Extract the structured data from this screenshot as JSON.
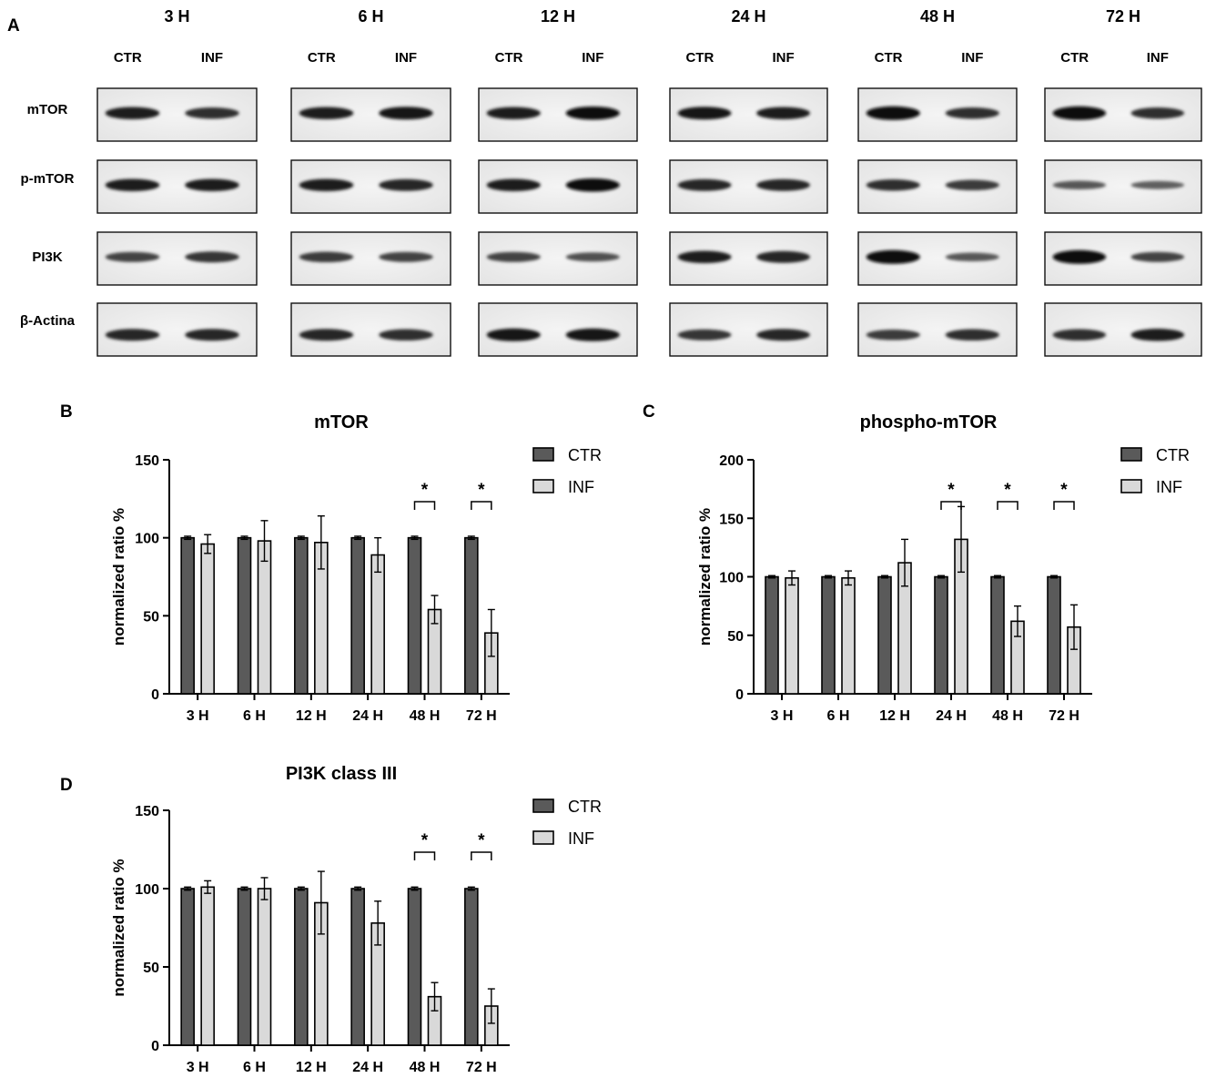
{
  "panel_labels": {
    "a": "A",
    "b": "B",
    "c": "C",
    "d": "D"
  },
  "blot": {
    "timepoints": [
      "3 H",
      "6 H",
      "12 H",
      "24 H",
      "48 H",
      "72 H"
    ],
    "lanes": [
      "CTR",
      "INF"
    ],
    "proteins": [
      "mTOR",
      "p-mTOR",
      "PI3K",
      "β-Actina"
    ],
    "band_intensity": {
      "mTOR": [
        [
          0.85,
          0.75
        ],
        [
          0.85,
          0.9
        ],
        [
          0.85,
          0.95
        ],
        [
          0.9,
          0.85
        ],
        [
          1.0,
          0.75
        ],
        [
          1.0,
          0.75
        ]
      ],
      "p-mTOR": [
        [
          0.85,
          0.85
        ],
        [
          0.85,
          0.8
        ],
        [
          0.85,
          0.95
        ],
        [
          0.8,
          0.8
        ],
        [
          0.75,
          0.65
        ],
        [
          0.45,
          0.4
        ]
      ],
      "PI3K": [
        [
          0.6,
          0.7
        ],
        [
          0.65,
          0.6
        ],
        [
          0.6,
          0.5
        ],
        [
          0.85,
          0.8
        ],
        [
          1.0,
          0.45
        ],
        [
          1.0,
          0.6
        ]
      ],
      "β-Actina": [
        [
          0.8,
          0.8
        ],
        [
          0.8,
          0.75
        ],
        [
          0.9,
          0.9
        ],
        [
          0.7,
          0.8
        ],
        [
          0.65,
          0.75
        ],
        [
          0.75,
          0.85
        ]
      ]
    }
  },
  "legend": {
    "ctr": "CTR",
    "inf": "INF"
  },
  "colors": {
    "ctr": "#5a5a5a",
    "inf": "#d9d9d9"
  },
  "chart_data": [
    {
      "type": "bar",
      "panel": "B",
      "title": "mTOR",
      "ylabel": "normalized ratio %",
      "ylim": [
        0,
        150
      ],
      "yticks": [
        0,
        50,
        100,
        150
      ],
      "categories": [
        "3 H",
        "6 H",
        "12 H",
        "24 H",
        "48 H",
        "72 H"
      ],
      "series": [
        {
          "name": "CTR",
          "values": [
            100,
            100,
            100,
            100,
            100,
            100
          ],
          "errors": [
            1,
            1,
            1,
            1,
            1,
            1
          ]
        },
        {
          "name": "INF",
          "values": [
            96,
            98,
            97,
            89,
            54,
            39
          ],
          "errors": [
            6,
            13,
            17,
            11,
            9,
            15
          ]
        }
      ],
      "significance": [
        {
          "category": "48 H",
          "label": "*"
        },
        {
          "category": "72 H",
          "label": "*"
        }
      ]
    },
    {
      "type": "bar",
      "panel": "C",
      "title": "phospho-mTOR",
      "ylabel": "normalized ratio %",
      "ylim": [
        0,
        200
      ],
      "yticks": [
        0,
        50,
        100,
        150,
        200
      ],
      "categories": [
        "3 H",
        "6 H",
        "12 H",
        "24 H",
        "48 H",
        "72 H"
      ],
      "series": [
        {
          "name": "CTR",
          "values": [
            100,
            100,
            100,
            100,
            100,
            100
          ],
          "errors": [
            1,
            1,
            1,
            1,
            1,
            1
          ]
        },
        {
          "name": "INF",
          "values": [
            99,
            99,
            112,
            132,
            62,
            57
          ],
          "errors": [
            6,
            6,
            20,
            28,
            13,
            19
          ]
        }
      ],
      "significance": [
        {
          "category": "24 H",
          "label": "*"
        },
        {
          "category": "48 H",
          "label": "*"
        },
        {
          "category": "72 H",
          "label": "*"
        }
      ]
    },
    {
      "type": "bar",
      "panel": "D",
      "title": "PI3K class III",
      "ylabel": "normalized ratio %",
      "ylim": [
        0,
        150
      ],
      "yticks": [
        0,
        50,
        100,
        150
      ],
      "categories": [
        "3 H",
        "6 H",
        "12 H",
        "24 H",
        "48 H",
        "72 H"
      ],
      "series": [
        {
          "name": "CTR",
          "values": [
            100,
            100,
            100,
            100,
            100,
            100
          ],
          "errors": [
            1,
            1,
            1,
            1,
            1,
            1
          ]
        },
        {
          "name": "INF",
          "values": [
            101,
            100,
            91,
            78,
            31,
            25
          ],
          "errors": [
            4,
            7,
            20,
            14,
            9,
            11
          ]
        }
      ],
      "significance": [
        {
          "category": "48 H",
          "label": "*"
        },
        {
          "category": "72 H",
          "label": "*"
        }
      ]
    }
  ]
}
